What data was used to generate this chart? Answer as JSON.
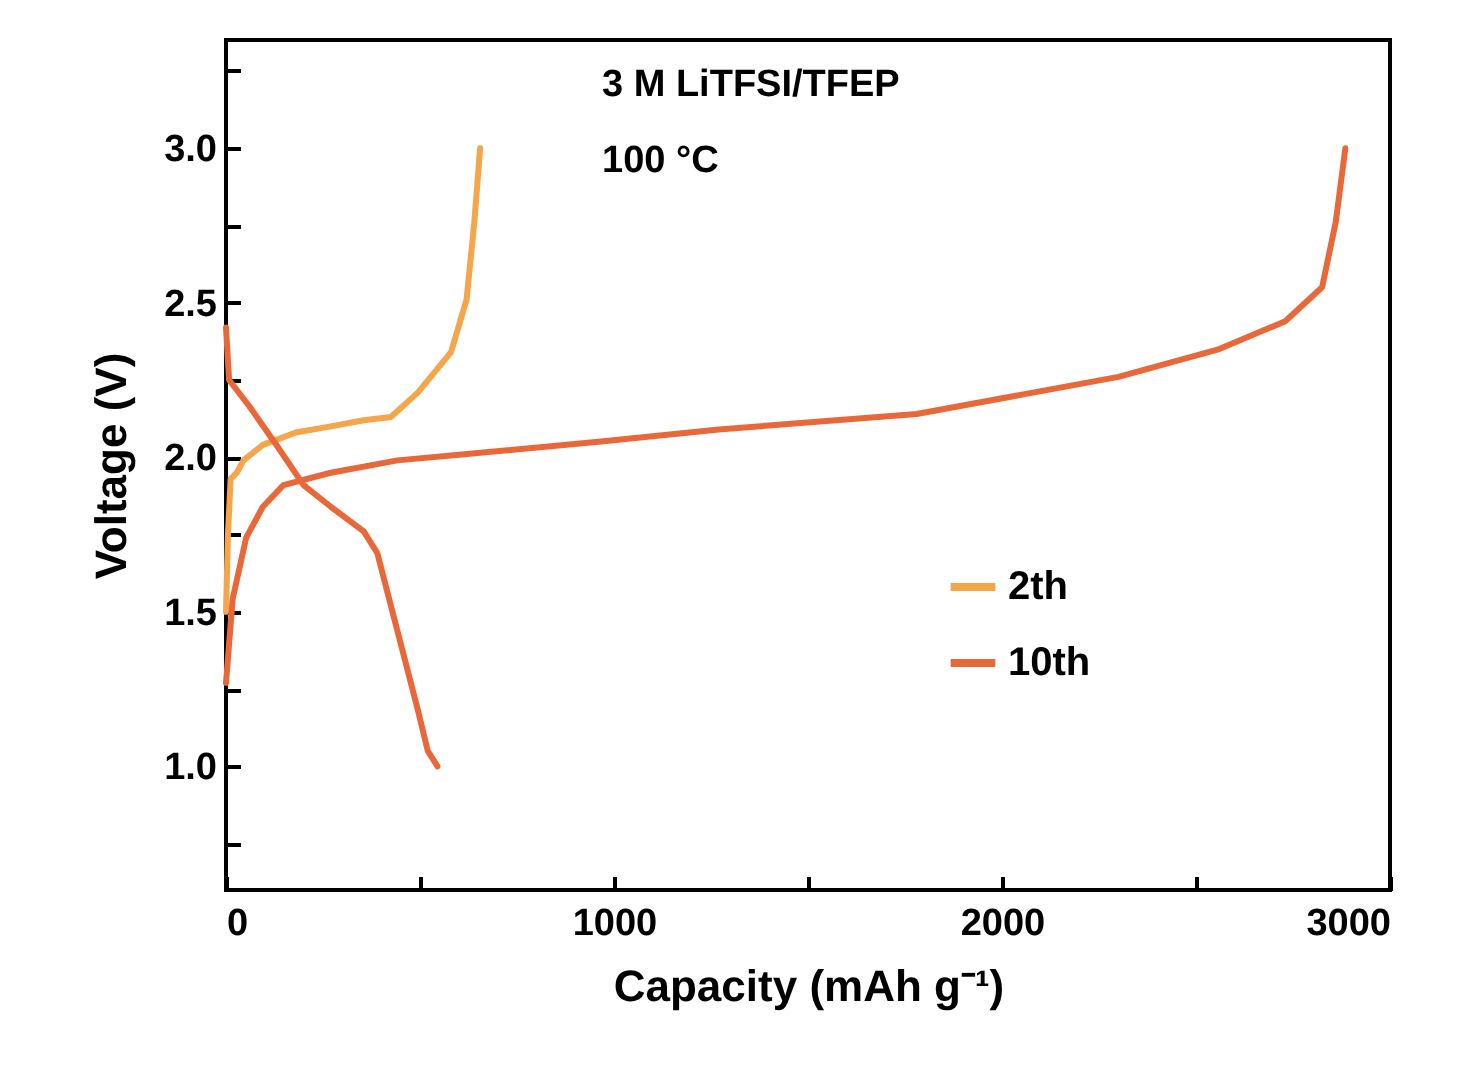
{
  "chart_data": {
    "type": "line",
    "xlabel": "Capacity (mAh g⁻¹)",
    "ylabel": "Voltage (V)",
    "annotations": [
      "3 M LiTFSI/TFEP",
      "100 °C"
    ],
    "xlim": [
      0,
      3000
    ],
    "xticks": [
      0,
      {
        "value": 500,
        "label": null
      },
      1000,
      {
        "value": 1500,
        "label": null
      },
      2000,
      {
        "value": 2500,
        "label": null
      },
      3000
    ],
    "ylim": [
      0.6,
      3.35
    ],
    "yticks": [
      {
        "value": 0.75,
        "label": null
      },
      {
        "value": 1.0,
        "label": "1.0"
      },
      {
        "value": 1.25,
        "label": null
      },
      1.5,
      {
        "value": 1.75,
        "label": null
      },
      {
        "value": 2.0,
        "label": "2.0"
      },
      {
        "value": 2.25,
        "label": null
      },
      2.5,
      {
        "value": 2.75,
        "label": null
      },
      {
        "value": 3.0,
        "label": "3.0"
      },
      {
        "value": 3.25,
        "label": null
      }
    ],
    "grid": false,
    "legend": "right",
    "line_style": "solid",
    "series": [
      {
        "name": "2th",
        "color": "#f5a54a",
        "x": [
          0,
          5,
          12,
          28,
          45,
          95,
          180,
          270,
          355,
          425,
          495,
          580,
          620,
          640,
          655
        ],
        "values": [
          1.5,
          1.75,
          1.93,
          1.95,
          1.99,
          2.04,
          2.08,
          2.1,
          2.12,
          2.13,
          2.21,
          2.34,
          2.51,
          2.76,
          3.0
        ]
      },
      {
        "name": "10th",
        "color": "#e8683a",
        "x": [
          0,
          8,
          60,
          130,
          200,
          270,
          355,
          390,
          425,
          460,
          495,
          520,
          545,
          null,
          0,
          17,
          52,
          95,
          148,
          270,
          442,
          615,
          960,
          1270,
          1780,
          2300,
          2560,
          2730,
          2825,
          2860,
          2885
        ],
        "values": [
          2.42,
          2.25,
          2.165,
          2.04,
          1.91,
          1.84,
          1.76,
          1.69,
          1.52,
          1.35,
          1.18,
          1.05,
          1.0,
          null,
          1.27,
          1.54,
          1.74,
          1.84,
          1.91,
          1.95,
          1.99,
          2.01,
          2.05,
          2.09,
          2.14,
          2.26,
          2.35,
          2.44,
          2.55,
          2.76,
          3.0
        ]
      }
    ]
  }
}
